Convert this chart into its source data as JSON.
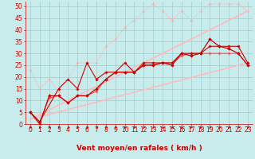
{
  "bg_color": "#c8ecec",
  "grid_color": "#a0cccc",
  "xlabel": "Vent moyen/en rafales ( km/h )",
  "ylabel_ticks": [
    0,
    5,
    10,
    15,
    20,
    25,
    30,
    35,
    40,
    45,
    50
  ],
  "xlim": [
    -0.5,
    23.5
  ],
  "ylim": [
    0,
    52
  ],
  "x_ticks": [
    0,
    1,
    2,
    3,
    4,
    5,
    6,
    7,
    8,
    9,
    10,
    11,
    12,
    13,
    14,
    15,
    16,
    17,
    18,
    19,
    20,
    21,
    22,
    23
  ],
  "series": [
    {
      "x": [
        0,
        1,
        2,
        3,
        4,
        5,
        6,
        7,
        8,
        9,
        10,
        11,
        12,
        13,
        14,
        15,
        16,
        17,
        18,
        19,
        20,
        21,
        22,
        23
      ],
      "y": [
        23,
        15,
        19,
        14,
        19,
        26,
        26,
        26,
        33,
        36,
        41,
        44,
        48,
        51,
        48,
        44,
        48,
        44,
        48,
        51,
        51,
        51,
        51,
        48
      ],
      "color": "#ffaaaa",
      "lw": 0.8,
      "marker": "D",
      "ms": 1.5,
      "ls": ":"
    },
    {
      "x": [
        0,
        23
      ],
      "y": [
        2,
        48
      ],
      "color": "#ffbbbb",
      "lw": 1.2,
      "marker": null,
      "ms": 0,
      "ls": "-"
    },
    {
      "x": [
        0,
        23
      ],
      "y": [
        2,
        26
      ],
      "color": "#ffbbbb",
      "lw": 1.2,
      "marker": null,
      "ms": 0,
      "ls": "-"
    },
    {
      "x": [
        0,
        1,
        2,
        3,
        4,
        5,
        6,
        7,
        8,
        9,
        10,
        11,
        12,
        13,
        14,
        15,
        16,
        17,
        18,
        19,
        20,
        21,
        22,
        23
      ],
      "y": [
        5,
        1,
        11,
        12,
        9,
        12,
        12,
        14,
        19,
        22,
        22,
        22,
        25,
        25,
        26,
        26,
        29,
        30,
        30,
        30,
        30,
        30,
        30,
        25
      ],
      "color": "#ff5555",
      "lw": 0.8,
      "marker": "D",
      "ms": 1.8,
      "ls": "-"
    },
    {
      "x": [
        0,
        1,
        2,
        3,
        4,
        5,
        6,
        7,
        8,
        9,
        10,
        11,
        12,
        13,
        14,
        15,
        16,
        17,
        18,
        19,
        20,
        21,
        22,
        23
      ],
      "y": [
        5,
        0,
        12,
        12,
        9,
        12,
        12,
        15,
        19,
        22,
        22,
        22,
        25,
        25,
        26,
        25,
        30,
        29,
        30,
        36,
        33,
        32,
        30,
        25
      ],
      "color": "#cc0000",
      "lw": 0.9,
      "marker": "D",
      "ms": 2.0,
      "ls": "-"
    },
    {
      "x": [
        0,
        1,
        3,
        4,
        5,
        6,
        7,
        8,
        9,
        10,
        11,
        12,
        13,
        14,
        15,
        16,
        17,
        18,
        19,
        20,
        21,
        22,
        23
      ],
      "y": [
        5,
        1,
        15,
        19,
        15,
        26,
        19,
        22,
        22,
        26,
        22,
        26,
        26,
        26,
        26,
        30,
        30,
        30,
        33,
        33,
        33,
        33,
        26
      ],
      "color": "#cc0000",
      "lw": 0.8,
      "marker": "D",
      "ms": 1.8,
      "ls": "-"
    }
  ],
  "arrow_color": "#cc0000",
  "xlabel_color": "#cc0000",
  "tick_color": "#cc0000",
  "xlabel_fontsize": 6.5,
  "tick_fontsize": 5.5
}
